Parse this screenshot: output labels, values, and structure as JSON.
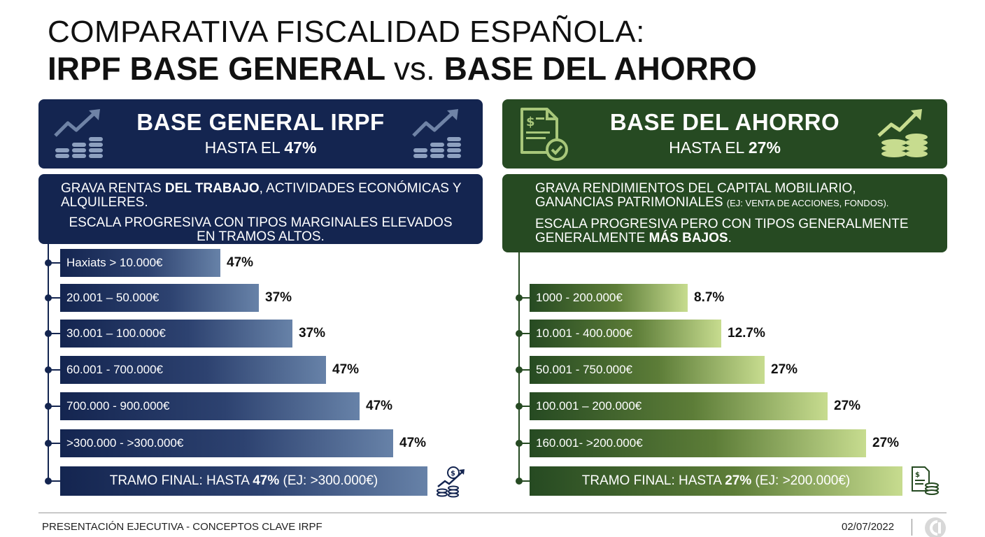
{
  "title": {
    "line1": "COMPARATIVA FISCALIDAD ESPAÑOLA:",
    "line2_a": "IRPF BASE GENERAL",
    "line2_vs": "vs.",
    "line2_b": "BASE DEL AHORRO"
  },
  "left": {
    "header_title": "BASE GENERAL IRPF",
    "header_sub_prefix": "HASTA EL",
    "header_sub_value": "47%",
    "desc1_a": "GRAVA RENTAS ",
    "desc1_b": "DEL TRABAJO",
    "desc1_c": ", ACTIVIDADES ECONÓMICAS Y",
    "desc1_d": "ALQUILERES.",
    "desc2_a": "ESCALA PROGRESIVA CON TIPOS MARGINALES ELEVADOS",
    "desc2_b": "EN TRAMOS ALTOS.",
    "brackets": [
      {
        "range": "Haxiats > 10.000€",
        "rate": "47%"
      },
      {
        "range": "20.001 – 50.000€",
        "rate": "37%"
      },
      {
        "range": "30.001 – 100.000€",
        "rate": "37%"
      },
      {
        "range": "60.001 - 700.000€",
        "rate": "47%"
      },
      {
        "range": "700.000 - 900.000€",
        "rate": "47%"
      },
      {
        "range": ">300.000 - >300.000€",
        "rate": "47%"
      }
    ],
    "final_prefix": "TRAMO FINAL: HASTA ",
    "final_value": "47%",
    "final_suffix": " (EJ: >300.000€)"
  },
  "right": {
    "header_title": "BASE DEL AHORRO",
    "header_sub_prefix": "HASTA EL",
    "header_sub_value": "27%",
    "desc1_a": "GRAVA RENDIMIENTOS DEL CAPITAL MOBILIARIO,",
    "desc1_b": "GANANCIAS PATRIMONIALES",
    "desc1_c": "(EJ: VENTA DE ACCIONES, FONDOS).",
    "desc2_a": "ESCALA PROGRESIVA PERO CON TIPOS GENERALMENTE",
    "desc2_b": "GENERALMENTE ",
    "desc2_c": "MÁS BAJOS",
    "desc2_d": ".",
    "brackets": [
      {
        "range": "1000 - 200.000€",
        "rate": "8.7%"
      },
      {
        "range": "10.001 - 400.000€",
        "rate": "12.7%"
      },
      {
        "range": "50.001 - 750.000€",
        "rate": "27%"
      },
      {
        "range": "100.001 – 200.000€",
        "rate": "27%"
      },
      {
        "range": "160.001- >200.000€",
        "rate": "27%"
      }
    ],
    "final_prefix": "TRAMO FINAL: HASTA ",
    "final_value": "27%",
    "final_suffix": " (EJ: >200.000€)"
  },
  "footer": {
    "left": "PRESENTACIÓN EJECUTIVA - CONCEPTOS CLAVE IRPF",
    "date": "02/07/2022"
  },
  "colors": {
    "navy": "#142550",
    "green": "#264a22",
    "light_green": "#c7dc8f",
    "light_blue": "#6782a8"
  },
  "icons": [
    "growth-chart-coins-icon",
    "document-check-icon",
    "money-growth-icon",
    "receipt-coins-icon",
    "logo-icon"
  ]
}
